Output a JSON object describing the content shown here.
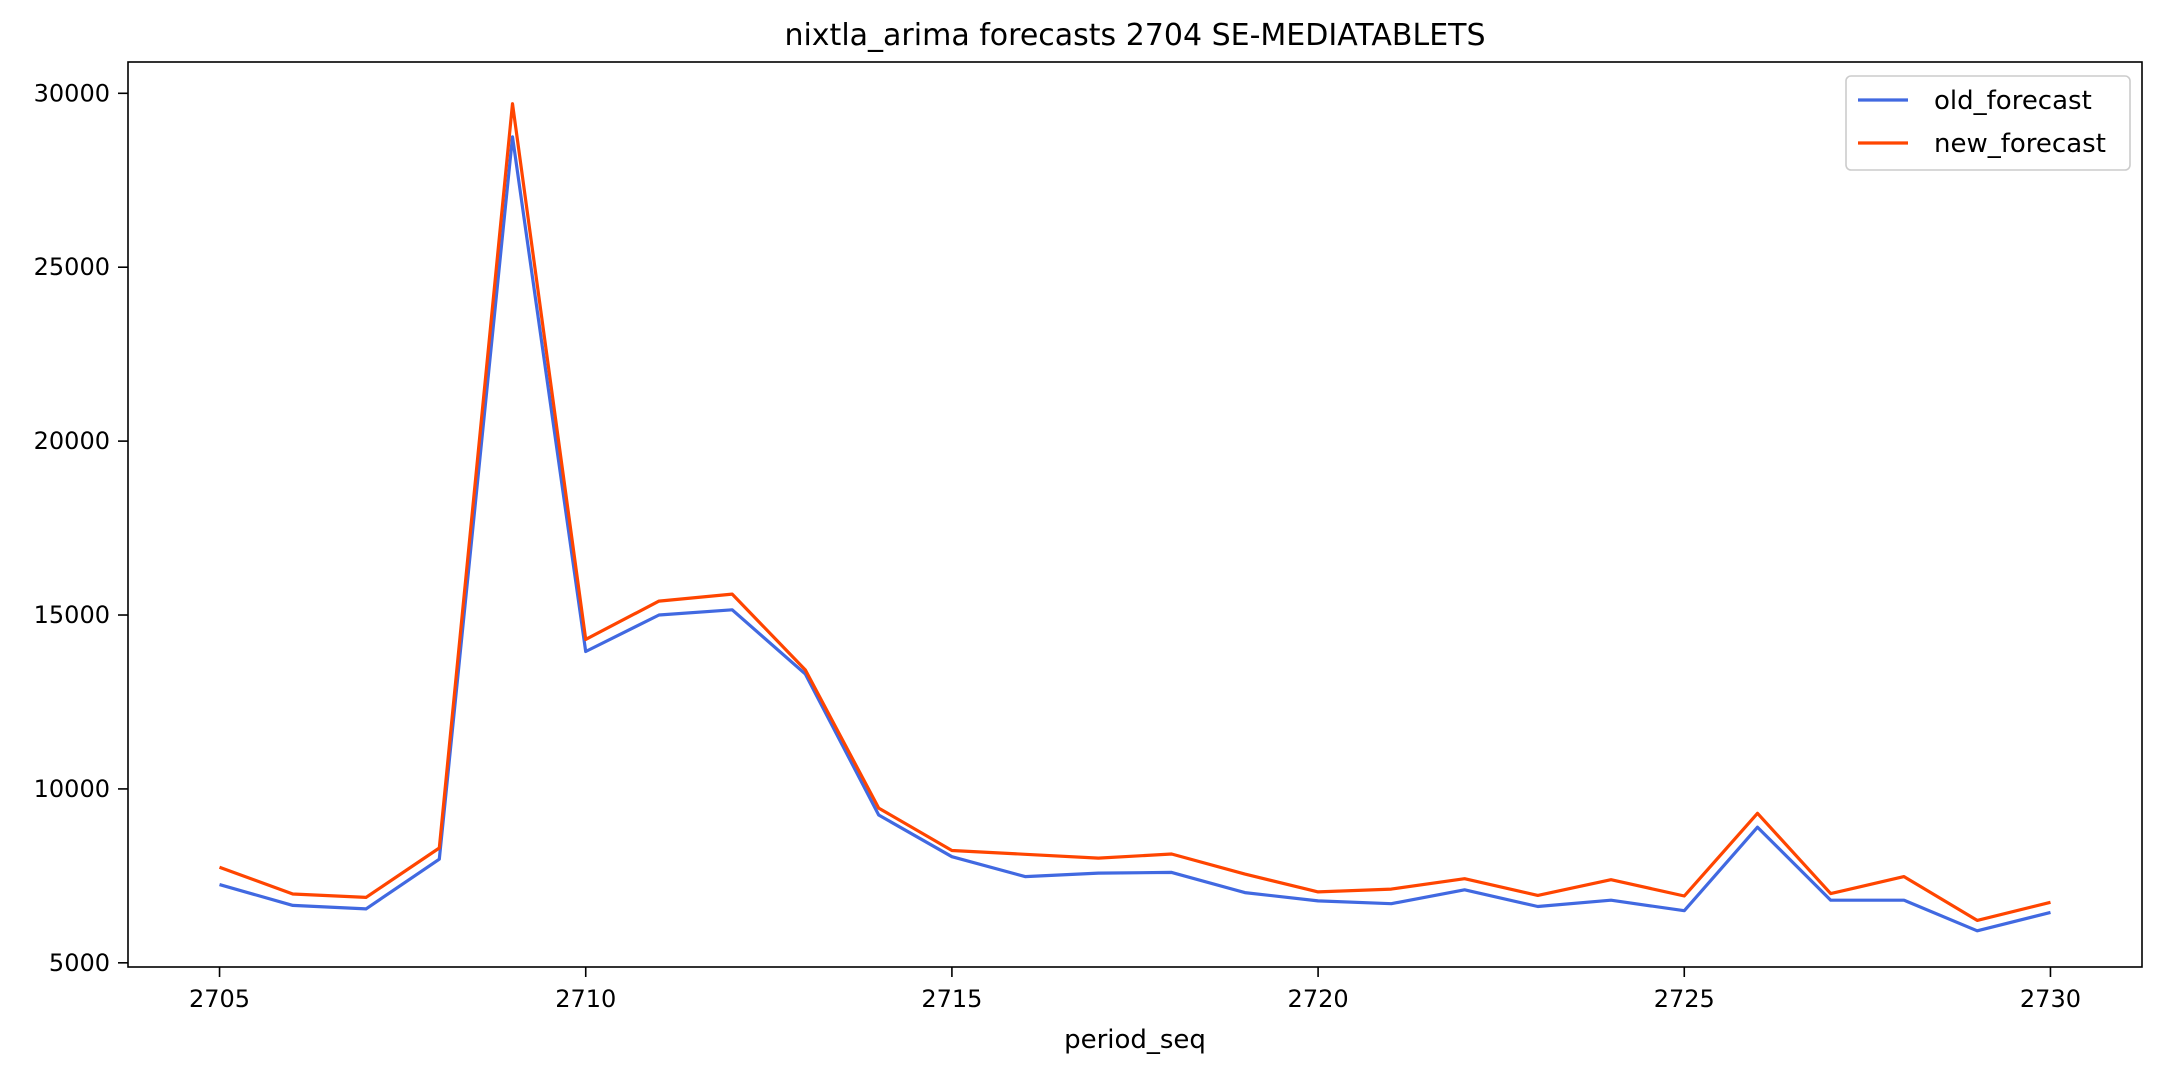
{
  "chart_data": {
    "type": "line",
    "title": "nixtla_arima forecasts 2704 SE-MEDIATABLETS",
    "xlabel": "period_seq",
    "ylabel": "",
    "x": [
      2705,
      2706,
      2707,
      2708,
      2709,
      2710,
      2711,
      2712,
      2713,
      2714,
      2715,
      2716,
      2717,
      2718,
      2719,
      2720,
      2721,
      2722,
      2723,
      2724,
      2725,
      2726,
      2727,
      2728,
      2729,
      2730
    ],
    "series": [
      {
        "name": "old_forecast",
        "color": "#4169e1",
        "values": [
          7250,
          6650,
          6550,
          7980,
          28750,
          13950,
          15000,
          15150,
          13300,
          9250,
          8050,
          7480,
          7580,
          7600,
          7020,
          6780,
          6700,
          7100,
          6620,
          6800,
          6500,
          8900,
          6800,
          6800,
          5920,
          6450
        ]
      },
      {
        "name": "new_forecast",
        "color": "#ff4500",
        "values": [
          7750,
          6980,
          6880,
          8300,
          29700,
          14300,
          15400,
          15600,
          13420,
          9450,
          8230,
          8120,
          8010,
          8130,
          7550,
          7040,
          7120,
          7420,
          6940,
          7390,
          6920,
          9300,
          6990,
          7480,
          6220,
          6740
        ]
      }
    ],
    "xticks": [
      "2705",
      "2710",
      "2715",
      "2720",
      "2725",
      "2730"
    ],
    "yticks": [
      "5000",
      "10000",
      "15000",
      "20000",
      "25000",
      "30000"
    ],
    "xlim": [
      2703.75,
      2731.25
    ],
    "ylim": [
      4880,
      30900
    ],
    "grid": false,
    "legend": "top-right"
  }
}
